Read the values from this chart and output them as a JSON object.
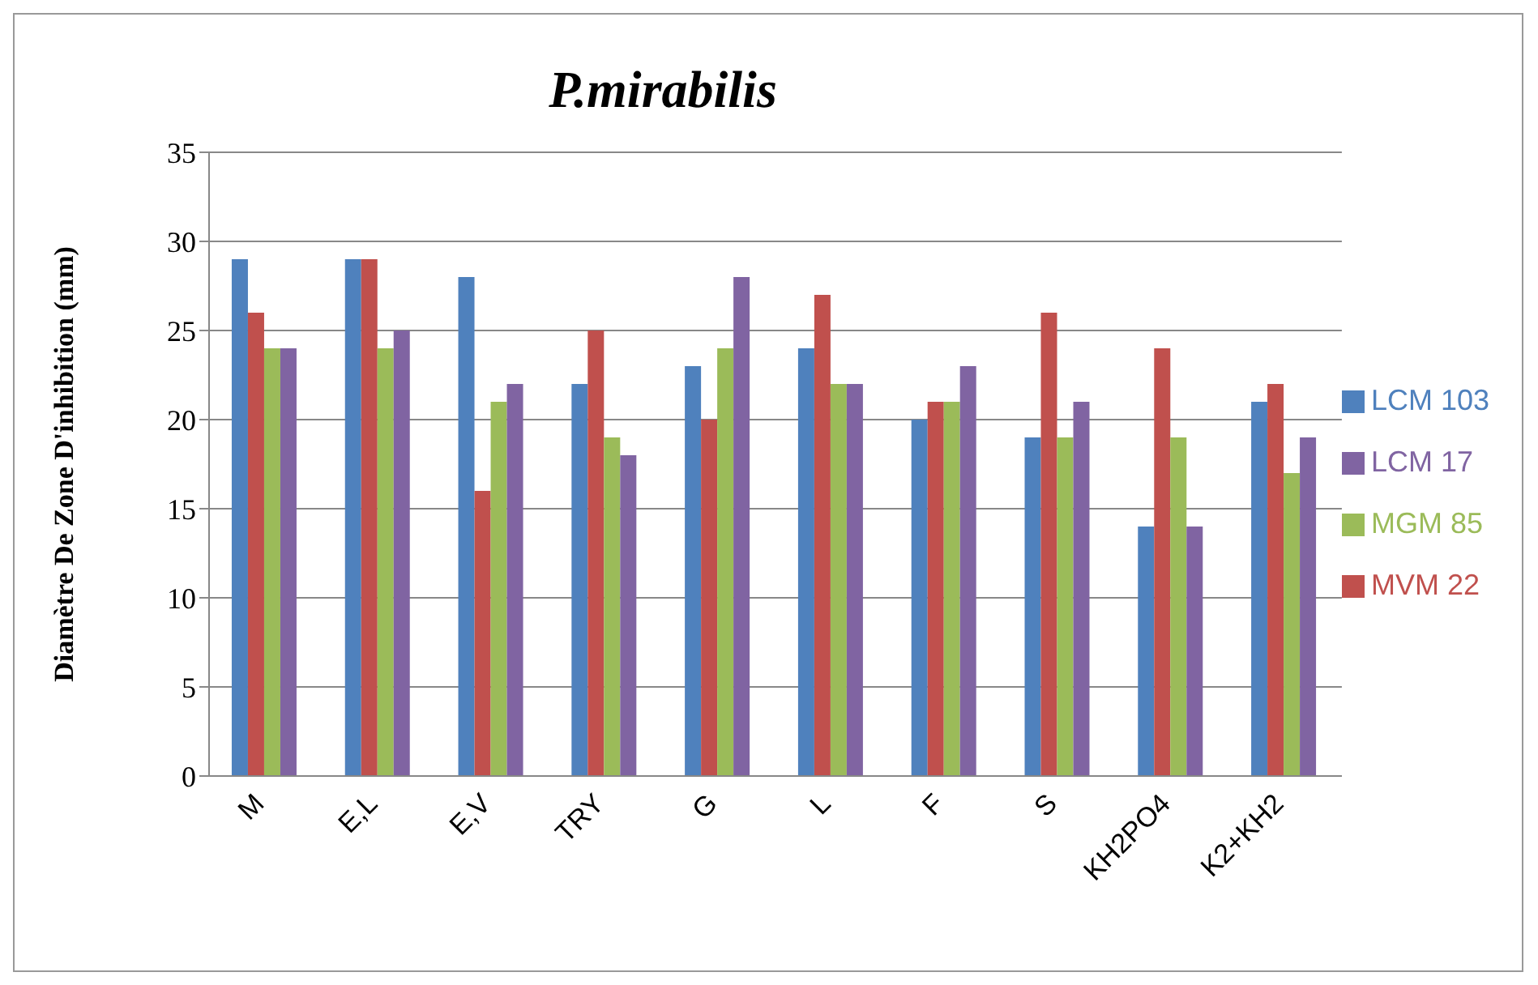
{
  "chart_data": {
    "type": "bar",
    "title": "P.mirabilis",
    "ylabel": "Diamètre De Zone D'inhibition (mm)",
    "categories": [
      "M",
      "E,L",
      "E,V",
      "TRY",
      "G",
      "L",
      "F",
      "S",
      "KH2PO4",
      "K2+KH2"
    ],
    "series": [
      {
        "name": "LCM 103",
        "color": "#4f81bd",
        "values": [
          29,
          29,
          28,
          22,
          23,
          24,
          20,
          19,
          14,
          21
        ]
      },
      {
        "name": "MVM 22",
        "color": "#c0504d",
        "values": [
          26,
          29,
          16,
          25,
          20,
          27,
          21,
          26,
          24,
          22
        ]
      },
      {
        "name": "MGM 85",
        "color": "#9bbb59",
        "values": [
          24,
          24,
          21,
          19,
          24,
          22,
          21,
          19,
          19,
          17
        ]
      },
      {
        "name": "LCM 17",
        "color": "#8064a2",
        "values": [
          24,
          25,
          22,
          18,
          28,
          22,
          23,
          21,
          14,
          19
        ]
      }
    ],
    "ylim": [
      0,
      35
    ],
    "yticks": [
      0,
      5,
      10,
      15,
      20,
      25,
      30,
      35
    ],
    "grid": "y",
    "legend": "right"
  }
}
